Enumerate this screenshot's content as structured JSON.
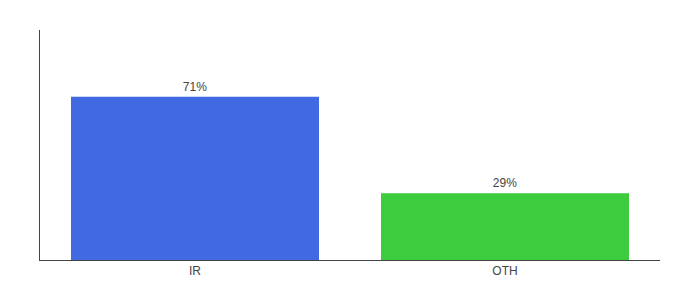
{
  "chart_data": {
    "type": "bar",
    "categories": [
      "IR",
      "OTH"
    ],
    "values": [
      71,
      29
    ],
    "colors": [
      "#4169e1",
      "#3dcc3d"
    ],
    "value_labels": [
      "71%",
      "29%"
    ],
    "data_labels": true,
    "ylim": [
      0,
      100
    ],
    "grid": false,
    "tick_labels": "x"
  }
}
